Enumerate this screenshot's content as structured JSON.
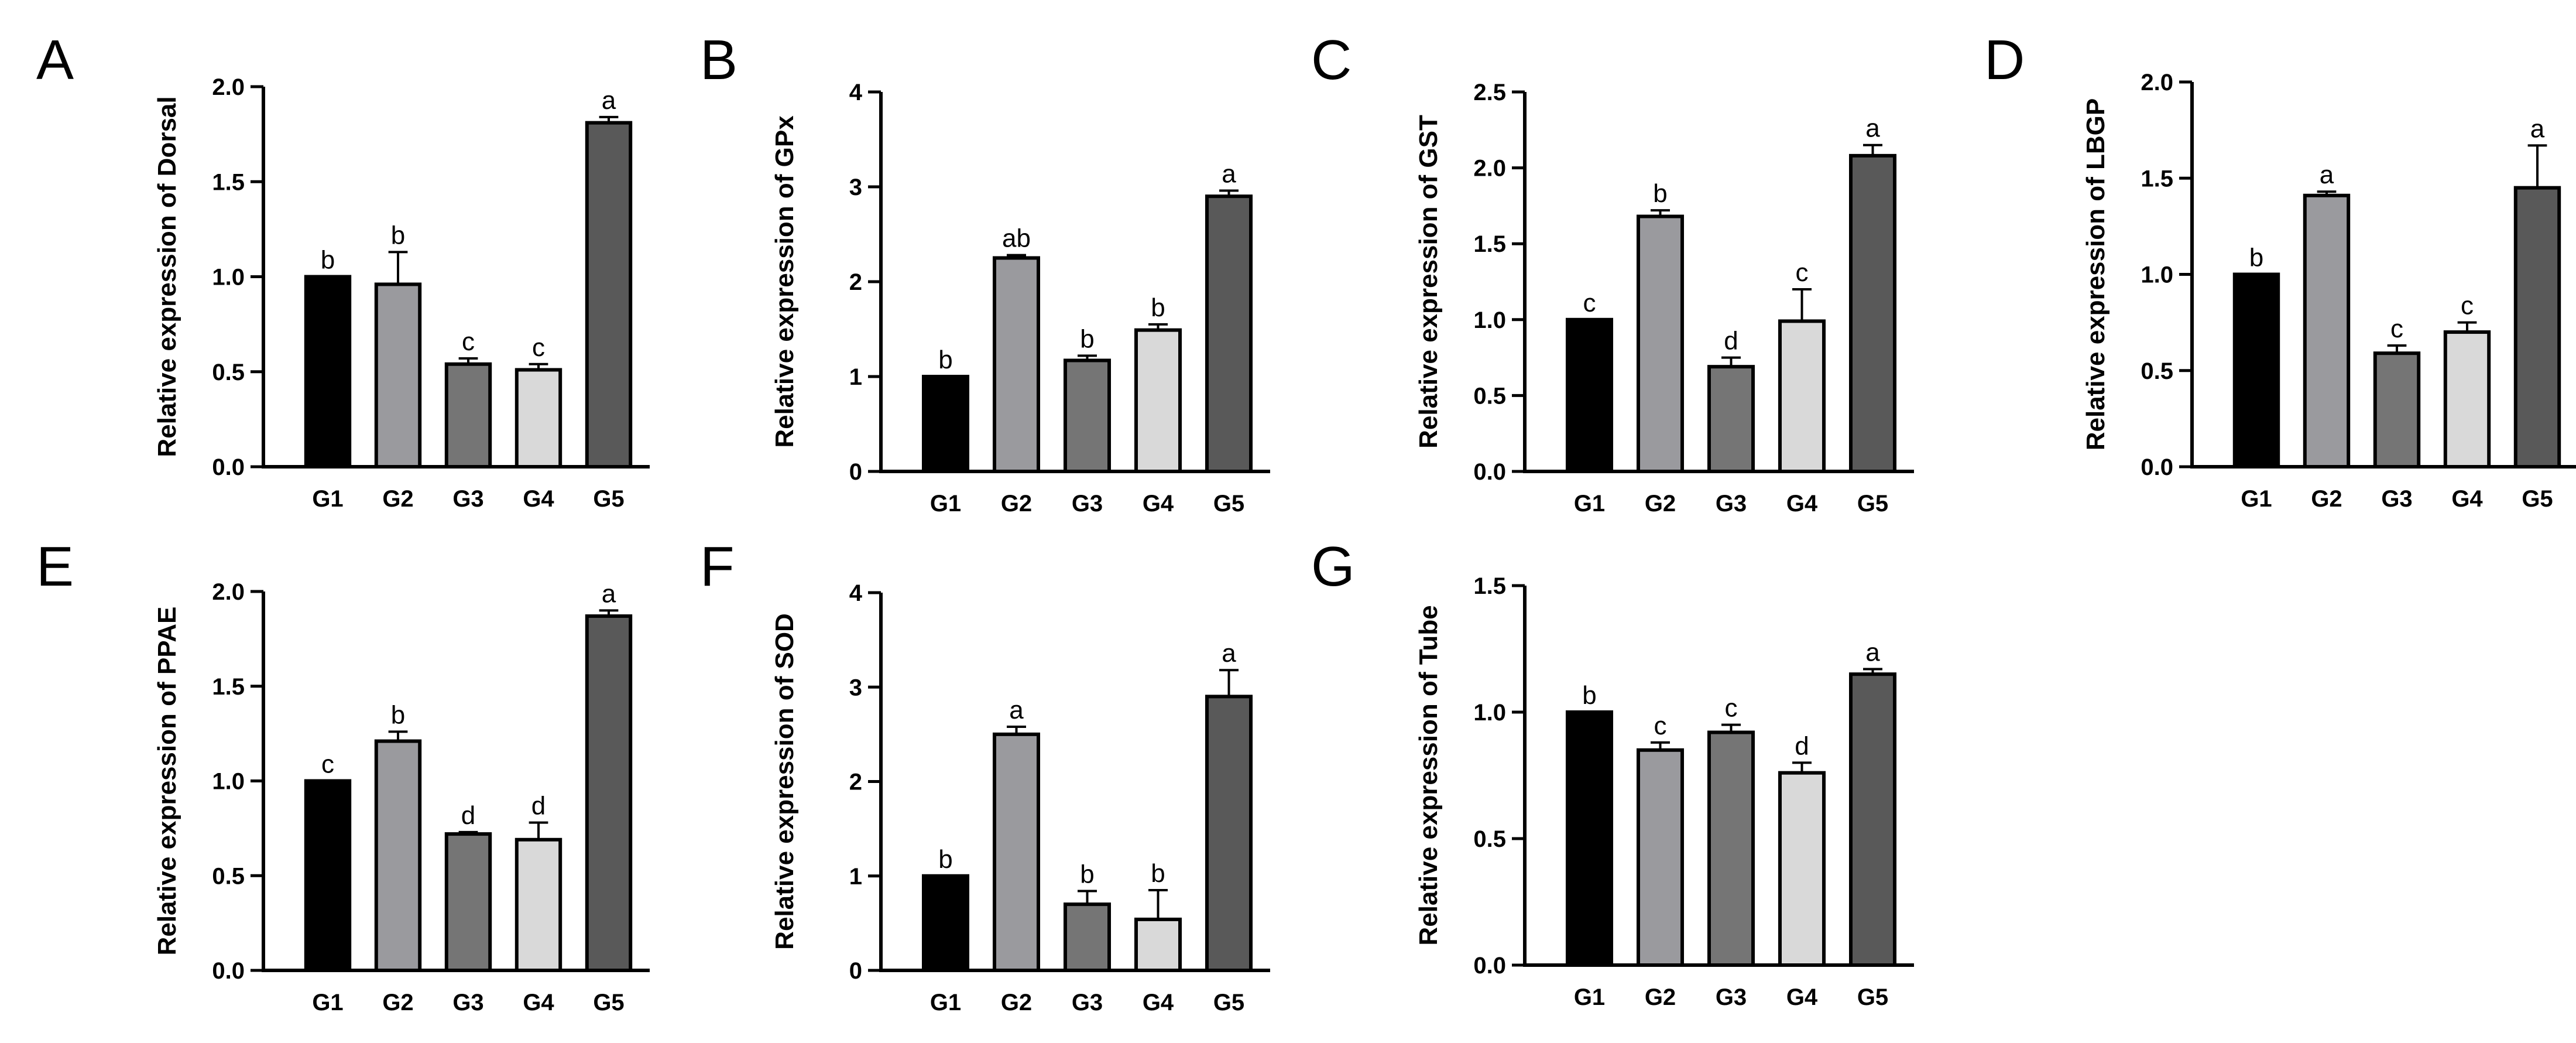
{
  "chart_data": [
    {
      "panel": "A",
      "type": "bar",
      "categories": [
        "G1",
        "G2",
        "G3",
        "G4",
        "G5"
      ],
      "values": [
        1.0,
        0.96,
        0.54,
        0.51,
        1.81
      ],
      "errors": [
        0.0,
        0.17,
        0.03,
        0.03,
        0.03
      ],
      "significance": [
        "b",
        "b",
        "c",
        "c",
        "a"
      ],
      "ylabel": "Relative expression of Dorsal",
      "ylim": [
        0,
        2.0
      ],
      "yticks": [
        "0.0",
        "0.5",
        "1.0",
        "1.5",
        "2.0"
      ],
      "tickvalues": [
        0,
        0.5,
        1.0,
        1.5,
        2.0
      ]
    },
    {
      "panel": "B",
      "type": "bar",
      "categories": [
        "G1",
        "G2",
        "G3",
        "G4",
        "G5"
      ],
      "values": [
        1.0,
        2.25,
        1.17,
        1.49,
        2.9
      ],
      "errors": [
        0.0,
        0.03,
        0.05,
        0.06,
        0.06
      ],
      "significance": [
        "b",
        "ab",
        "b",
        "b",
        "a"
      ],
      "ylabel": "Relative expression of GPx",
      "ylim": [
        0,
        4
      ],
      "yticks": [
        "0",
        "1",
        "2",
        "3",
        "4"
      ],
      "tickvalues": [
        0,
        1,
        2,
        3,
        4
      ]
    },
    {
      "panel": "C",
      "type": "bar",
      "categories": [
        "G1",
        "G2",
        "G3",
        "G4",
        "G5"
      ],
      "values": [
        1.0,
        1.68,
        0.69,
        0.99,
        2.08
      ],
      "errors": [
        0.0,
        0.04,
        0.06,
        0.21,
        0.07
      ],
      "significance": [
        "c",
        "b",
        "d",
        "c",
        "a"
      ],
      "ylabel": "Relative expression of GST",
      "ylim": [
        0,
        2.5
      ],
      "yticks": [
        "0.0",
        "0.5",
        "1.0",
        "1.5",
        "2.0",
        "2.5"
      ],
      "tickvalues": [
        0,
        0.5,
        1.0,
        1.5,
        2.0,
        2.5
      ]
    },
    {
      "panel": "D",
      "type": "bar",
      "categories": [
        "G1",
        "G2",
        "G3",
        "G4",
        "G5"
      ],
      "values": [
        1.0,
        1.41,
        0.59,
        0.7,
        1.45
      ],
      "errors": [
        0.0,
        0.02,
        0.04,
        0.05,
        0.22
      ],
      "significance": [
        "b",
        "a",
        "c",
        "c",
        "a"
      ],
      "ylabel": "Relative expression of LBGP",
      "ylim": [
        0,
        2.0
      ],
      "yticks": [
        "0.0",
        "0.5",
        "1.0",
        "1.5",
        "2.0"
      ],
      "tickvalues": [
        0,
        0.5,
        1.0,
        1.5,
        2.0
      ]
    },
    {
      "panel": "E",
      "type": "bar",
      "categories": [
        "G1",
        "G2",
        "G3",
        "G4",
        "G5"
      ],
      "values": [
        1.0,
        1.21,
        0.72,
        0.69,
        1.87
      ],
      "errors": [
        0.0,
        0.05,
        0.01,
        0.09,
        0.03
      ],
      "significance": [
        "c",
        "b",
        "d",
        "d",
        "a"
      ],
      "ylabel": "Relative expression of PPAE",
      "ylim": [
        0,
        2.0
      ],
      "yticks": [
        "0.0",
        "0.5",
        "1.0",
        "1.5",
        "2.0"
      ],
      "tickvalues": [
        0,
        0.5,
        1.0,
        1.5,
        2.0
      ]
    },
    {
      "panel": "F",
      "type": "bar",
      "categories": [
        "G1",
        "G2",
        "G3",
        "G4",
        "G5"
      ],
      "values": [
        1.0,
        2.5,
        0.7,
        0.54,
        2.9
      ],
      "errors": [
        0.0,
        0.08,
        0.14,
        0.31,
        0.28
      ],
      "significance": [
        "b",
        "a",
        "b",
        "b",
        "a"
      ],
      "ylabel": "Relative expression of SOD",
      "ylim": [
        0,
        4
      ],
      "yticks": [
        "0",
        "1",
        "2",
        "3",
        "4"
      ],
      "tickvalues": [
        0,
        1,
        2,
        3,
        4
      ]
    },
    {
      "panel": "G",
      "type": "bar",
      "categories": [
        "G1",
        "G2",
        "G3",
        "G4",
        "G5"
      ],
      "values": [
        1.0,
        0.85,
        0.92,
        0.76,
        1.15
      ],
      "errors": [
        0.0,
        0.03,
        0.03,
        0.04,
        0.02
      ],
      "significance": [
        "b",
        "c",
        "c",
        "d",
        "a"
      ],
      "ylabel": "Relative expression of Tube",
      "ylim": [
        0,
        1.5
      ],
      "yticks": [
        "0.0",
        "0.5",
        "1.0",
        "1.5"
      ],
      "tickvalues": [
        0,
        0.5,
        1.0,
        1.5
      ]
    }
  ],
  "colors": {
    "G1": "#000000",
    "G2": "#9a9a9e",
    "G3": "#757575",
    "G4": "#d9d9d9",
    "G5": "#595959"
  }
}
